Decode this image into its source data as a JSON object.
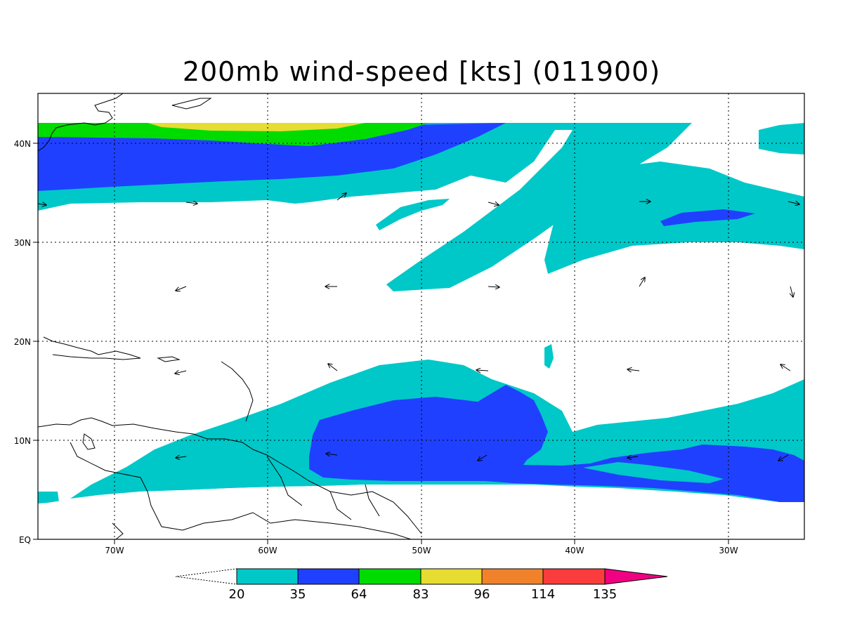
{
  "title": "200mb wind-speed [kts] (011900)",
  "map": {
    "lon_range": [
      -75,
      -25
    ],
    "lat_range": [
      0,
      45
    ],
    "lon_ticks": [
      "70W",
      "60W",
      "50W",
      "40W",
      "30W"
    ],
    "lat_ticks": [
      "EQ",
      "10N",
      "20N",
      "30N",
      "40N"
    ],
    "grid": "dotted"
  },
  "colorbar": {
    "levels": [
      "20",
      "35",
      "64",
      "83",
      "96",
      "114",
      "135"
    ],
    "colors": [
      "#00c8c8",
      "#2040ff",
      "#00dc00",
      "#e6dc32",
      "#f0822c",
      "#fa3c3c",
      "#f00082"
    ],
    "units": "kts"
  },
  "contours": {
    "20": "#00c8c8",
    "35": "#2040ff",
    "64": "#00dc00",
    "83": "#e6dc32"
  },
  "wind_vectors": "arrow glyphs at sparse grid points"
}
